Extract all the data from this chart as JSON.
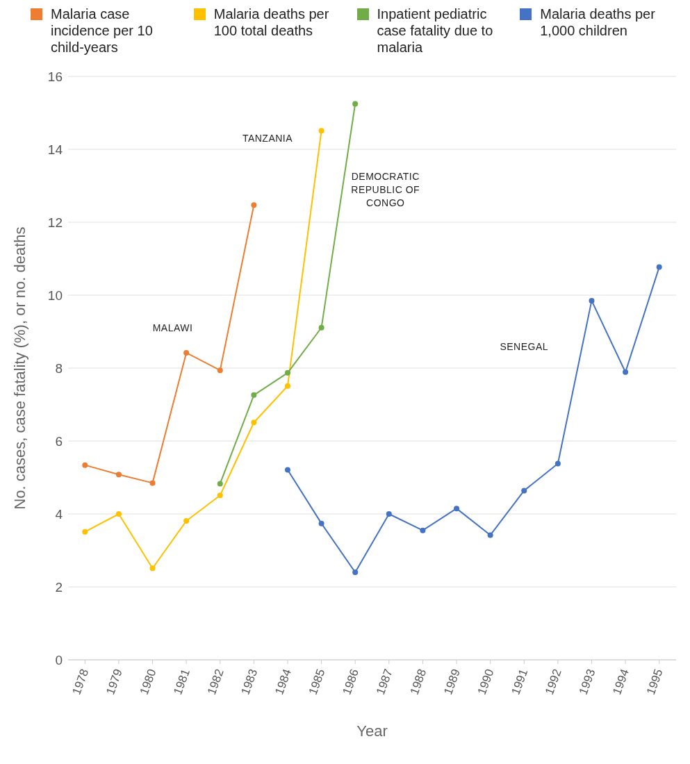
{
  "chart_data": {
    "type": "line",
    "xlabel": "Year",
    "ylabel": "No. cases, case fatality (%), or no. deaths",
    "xlim": [
      1977.5,
      1995.5
    ],
    "xticks": [
      1978,
      1979,
      1980,
      1981,
      1982,
      1983,
      1984,
      1985,
      1986,
      1987,
      1988,
      1989,
      1990,
      1991,
      1992,
      1993,
      1994,
      1995
    ],
    "ylim": [
      0,
      16
    ],
    "yticks": [
      0,
      2,
      4,
      6,
      8,
      10,
      12,
      14,
      16
    ],
    "grid": "y",
    "legend": "top",
    "marker": "circle",
    "line_style": "solid",
    "series": [
      {
        "name": "Malaria case incidence per 10 child-years",
        "color": "#ed7d31",
        "x": [
          1978,
          1979,
          1980,
          1981,
          1982,
          1983
        ],
        "values": [
          5.34,
          5.08,
          4.85,
          8.42,
          7.94,
          12.47
        ]
      },
      {
        "name": "Malaria deaths per 100 total deaths",
        "color": "#ffc000",
        "x": [
          1978,
          1979,
          1980,
          1981,
          1982,
          1983,
          1984,
          1985
        ],
        "values": [
          3.51,
          4.0,
          2.51,
          3.81,
          4.51,
          6.51,
          7.51,
          14.51
        ]
      },
      {
        "name": "Inpatient pediatric case fatality due to malaria",
        "color": "#70ad47",
        "x": [
          1982,
          1983,
          1984,
          1985,
          1986
        ],
        "values": [
          4.83,
          7.26,
          7.87,
          9.11,
          15.25
        ]
      },
      {
        "name": "Malaria deaths per 1,000 children",
        "color": "#4472c4",
        "x": [
          1984,
          1985,
          1986,
          1987,
          1988,
          1989,
          1990,
          1991,
          1992,
          1993,
          1994,
          1995
        ],
        "values": [
          5.21,
          3.74,
          2.4,
          4.0,
          3.55,
          4.15,
          3.42,
          4.64,
          5.38,
          9.85,
          7.89,
          10.77
        ]
      }
    ],
    "annotations": [
      "MALAWI",
      "TANZANIA",
      "DEMOCRATIC REPUBLIC OF CONGO",
      "SENEGAL"
    ]
  }
}
